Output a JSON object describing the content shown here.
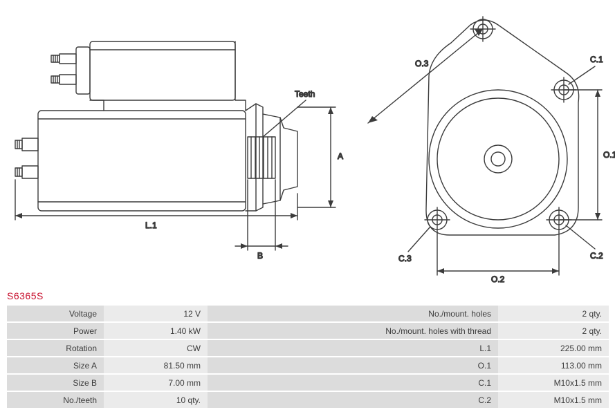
{
  "part_number": "S6365S",
  "colors": {
    "outline": "#3b3b3b",
    "dim_line": "#3b3b3b",
    "text": "#3b3b3b",
    "part_number": "#c8102e",
    "table_label_bg": "#dcdcdc",
    "table_value_bg": "#ebebeb",
    "background": "#ffffff"
  },
  "typography": {
    "label_fontsize": 12,
    "part_number_fontsize": 14
  },
  "side_view": {
    "labels": {
      "teeth": "Teeth",
      "A": "A",
      "B": "B",
      "L1": "L.1"
    },
    "stroke_width": 1.4
  },
  "front_view": {
    "labels": {
      "C1": "C.1",
      "C2": "C.2",
      "C3": "C.3",
      "O1": "O.1",
      "O2": "O.2",
      "O3": "O.3"
    },
    "stroke_width": 1.4
  },
  "specs_left": [
    {
      "label": "Voltage",
      "value": "12 V"
    },
    {
      "label": "Power",
      "value": "1.40 kW"
    },
    {
      "label": "Rotation",
      "value": "CW"
    },
    {
      "label": "Size A",
      "value": "81.50 mm"
    },
    {
      "label": "Size B",
      "value": "7.00 mm"
    },
    {
      "label": "No./teeth",
      "value": "10 qty."
    }
  ],
  "specs_right": [
    {
      "label": "No./mount. holes",
      "value": "2 qty."
    },
    {
      "label": "No./mount. holes with thread",
      "value": "2 qty."
    },
    {
      "label": "L.1",
      "value": "225.00 mm"
    },
    {
      "label": "O.1",
      "value": "113.00 mm"
    },
    {
      "label": "C.1",
      "value": "M10x1.5 mm"
    },
    {
      "label": "C.2",
      "value": "M10x1.5 mm"
    }
  ]
}
